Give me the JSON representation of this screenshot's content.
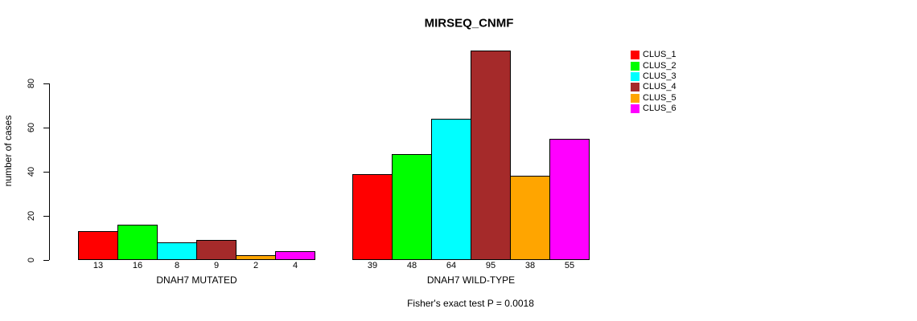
{
  "chart_data": {
    "type": "bar",
    "title": "MIRSEQ_CNMF",
    "ylabel": "number of cases",
    "xlabel": "",
    "annotation": "Fisher's exact test P = 0.0018",
    "yticks": [
      0,
      20,
      40,
      60,
      80
    ],
    "ylim": [
      0,
      97
    ],
    "grid": false,
    "legend_position": "right",
    "series": [
      {
        "name": "CLUS_1",
        "color": "#FF0000"
      },
      {
        "name": "CLUS_2",
        "color": "#00FF00"
      },
      {
        "name": "CLUS_3",
        "color": "#00FFFF"
      },
      {
        "name": "CLUS_4",
        "color": "#A52A2A"
      },
      {
        "name": "CLUS_5",
        "color": "#FFA500"
      },
      {
        "name": "CLUS_6",
        "color": "#FF00FF"
      }
    ],
    "groups": [
      {
        "label": "DNAH7 MUTATED",
        "values": [
          13,
          16,
          8,
          9,
          2,
          4
        ]
      },
      {
        "label": "DNAH7 WILD-TYPE",
        "values": [
          39,
          48,
          64,
          95,
          38,
          55
        ]
      }
    ],
    "bar_labels_shown": true,
    "axis_color": "#000000",
    "background_color": "#FFFFFF"
  }
}
